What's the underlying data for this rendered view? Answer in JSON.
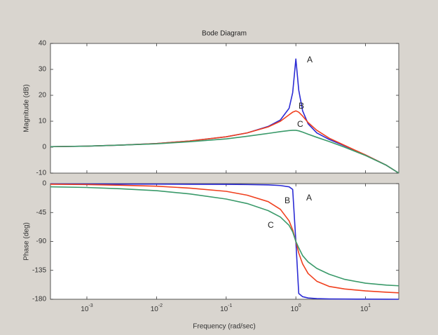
{
  "chart_data": [
    {
      "type": "line",
      "title": "Bode Diagram",
      "ylabel": "Magnitude (dB)",
      "log_x": true,
      "x": [
        0.0003,
        0.001,
        0.003,
        0.01,
        0.03,
        0.1,
        0.2,
        0.4,
        0.6,
        0.8,
        0.9,
        1,
        1.1,
        1.25,
        1.5,
        2,
        3,
        5,
        10,
        20,
        30
      ],
      "xlim": [
        0.0003,
        30
      ],
      "ylim": [
        -10,
        40
      ],
      "yticks": [
        -10,
        0,
        10,
        20,
        30,
        40
      ],
      "series": [
        {
          "name": "A",
          "color": "#2b2bd4",
          "values": [
            0.2,
            0.4,
            0.8,
            1.4,
            2.4,
            4,
            5.5,
            8,
            10.5,
            15,
            21,
            34,
            22,
            14,
            9,
            5.5,
            3,
            0.5,
            -3,
            -7,
            -10
          ]
        },
        {
          "name": "B",
          "color": "#f0401e",
          "values": [
            0.2,
            0.4,
            0.8,
            1.4,
            2.4,
            4,
            5.5,
            7.8,
            10,
            12.5,
            13.5,
            14,
            13.5,
            12,
            9.5,
            6.5,
            3.5,
            0.7,
            -3,
            -7,
            -10
          ]
        },
        {
          "name": "C",
          "color": "#3a9a6a",
          "values": [
            0.2,
            0.4,
            0.8,
            1.3,
            2.1,
            3.2,
            4.2,
            5.3,
            6,
            6.4,
            6.5,
            6.5,
            6.3,
            5.8,
            5,
            3.8,
            2.2,
            0,
            -3.2,
            -7,
            -10
          ]
        }
      ]
    },
    {
      "type": "line",
      "ylabel": "Phase (deg)",
      "xlabel": "Frequency  (rad/sec)",
      "log_x": true,
      "x": [
        0.0003,
        0.001,
        0.003,
        0.01,
        0.03,
        0.1,
        0.2,
        0.4,
        0.6,
        0.8,
        0.9,
        1,
        1.1,
        1.25,
        1.5,
        2,
        3,
        5,
        10,
        20,
        30
      ],
      "xlim": [
        0.0003,
        30
      ],
      "xticks": [
        {
          "value": 0.001,
          "label": "10",
          "exponent": "-3"
        },
        {
          "value": 0.01,
          "label": "10",
          "exponent": "-2"
        },
        {
          "value": 0.1,
          "label": "10",
          "exponent": "-1"
        },
        {
          "value": 1,
          "label": "10",
          "exponent": "0"
        },
        {
          "value": 10,
          "label": "10",
          "exponent": "1"
        }
      ],
      "ylim": [
        -180,
        0
      ],
      "yticks": [
        0,
        -45,
        -90,
        -135,
        -180
      ],
      "series": [
        {
          "name": "A",
          "color": "#2b2bd4",
          "values": [
            -0.5,
            -0.6,
            -0.7,
            -0.8,
            -1,
            -1.2,
            -1.5,
            -2,
            -3,
            -5,
            -9,
            -90,
            -171,
            -176,
            -178,
            -179,
            -179.5,
            -179.7,
            -179.8,
            -179.9,
            -180
          ]
        },
        {
          "name": "B",
          "color": "#f0401e",
          "values": [
            -1,
            -1.5,
            -2.5,
            -4,
            -7,
            -12,
            -18,
            -28,
            -40,
            -58,
            -72,
            -90,
            -108,
            -125,
            -140,
            -152,
            -160,
            -164,
            -167,
            -169,
            -170
          ]
        },
        {
          "name": "C",
          "color": "#3a9a6a",
          "values": [
            -5,
            -6,
            -8,
            -11,
            -16,
            -24,
            -31,
            -42,
            -52,
            -65,
            -75,
            -90,
            -100,
            -112,
            -122,
            -132,
            -141,
            -149,
            -155,
            -158,
            -159
          ]
        }
      ]
    }
  ]
}
